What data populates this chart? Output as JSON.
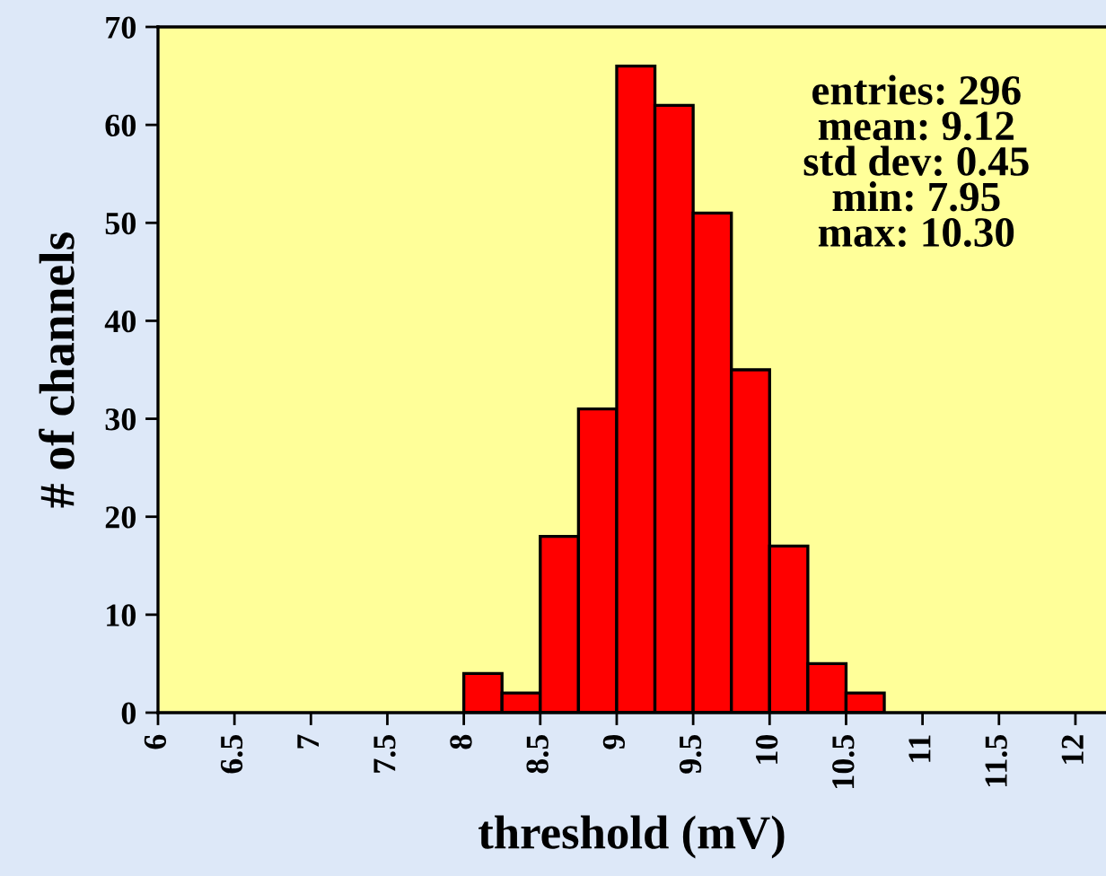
{
  "chart_data": {
    "type": "histogram",
    "xlabel": "threshold (mV)",
    "ylabel": "# of channels",
    "bins": [
      8,
      8.25,
      8.5,
      8.75,
      9,
      9.25,
      9.5,
      9.75,
      10,
      10.25,
      10.5,
      10.75
    ],
    "values": [
      4,
      2,
      18,
      31,
      66,
      62,
      51,
      35,
      17,
      5,
      2
    ],
    "color": "#ff0000",
    "xlim": [
      6,
      12.2
    ],
    "xticks": [
      6,
      6.5,
      7,
      7.5,
      8,
      8.5,
      9,
      9.5,
      10,
      10.5,
      11,
      11.5,
      12
    ],
    "ylim": [
      0,
      70
    ],
    "yticks": [
      0,
      10,
      20,
      30,
      40,
      50,
      60,
      70
    ],
    "grid": false,
    "legend": false,
    "annotations": [
      "entries: 296\nmean: 9.12\nstd dev: 0.45\nmin: 7.95\nmax: 10.30"
    ]
  }
}
